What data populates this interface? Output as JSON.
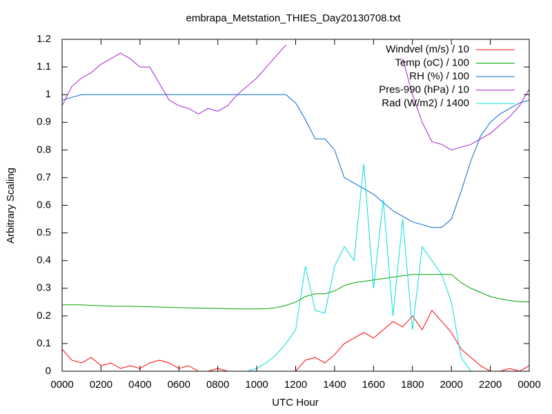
{
  "chart_data": {
    "type": "line",
    "title": "embrapa_Metstation_THIES_Day20130708.txt",
    "xlabel": "UTC Hour",
    "ylabel": "Arbitrary Scaling",
    "xlim": [
      0,
      24
    ],
    "ylim": [
      0,
      1.2
    ],
    "xticks": [
      {
        "value": 0,
        "label": "0000"
      },
      {
        "value": 2,
        "label": "0200"
      },
      {
        "value": 4,
        "label": "0400"
      },
      {
        "value": 6,
        "label": "0600"
      },
      {
        "value": 8,
        "label": "0800"
      },
      {
        "value": 10,
        "label": "1000"
      },
      {
        "value": 12,
        "label": "1200"
      },
      {
        "value": 14,
        "label": "1400"
      },
      {
        "value": 16,
        "label": "1600"
      },
      {
        "value": 18,
        "label": "1800"
      },
      {
        "value": 20,
        "label": "2000"
      },
      {
        "value": 22,
        "label": "2200"
      },
      {
        "value": 24,
        "label": "0000"
      }
    ],
    "yticks": [
      0,
      0.1,
      0.2,
      0.3,
      0.4,
      0.5,
      0.6,
      0.7,
      0.8,
      0.9,
      1,
      1.1,
      1.2
    ],
    "grid": false,
    "legend": "top-right",
    "x": [
      0,
      0.5,
      1,
      1.5,
      2,
      2.5,
      3,
      3.5,
      4,
      4.5,
      5,
      5.5,
      6,
      6.5,
      7,
      7.5,
      8,
      8.5,
      9,
      9.5,
      10,
      10.5,
      11,
      11.5,
      12,
      12.5,
      13,
      13.5,
      14,
      14.5,
      15,
      15.5,
      16,
      16.5,
      17,
      17.5,
      18,
      18.5,
      19,
      19.5,
      20,
      20.5,
      21,
      21.5,
      22,
      22.5,
      23,
      23.5,
      24
    ],
    "series": [
      {
        "name": "Windvel (m/s) / 10",
        "color": "#ff0000",
        "values": [
          0.08,
          0.04,
          0.03,
          0.05,
          0.02,
          0.03,
          0.01,
          0.02,
          0.01,
          0.03,
          0.04,
          0.03,
          0.01,
          0.02,
          0,
          0,
          0.01,
          0,
          0,
          0,
          0,
          0,
          0,
          0,
          0,
          0.04,
          0.05,
          0.03,
          0.06,
          0.1,
          0.12,
          0.14,
          0.12,
          0.15,
          0.18,
          0.16,
          0.2,
          0.15,
          0.22,
          0.18,
          0.14,
          0.08,
          0.05,
          0.02,
          0,
          0,
          0.01,
          0,
          0.02
        ]
      },
      {
        "name": "Temp (oC) / 100",
        "color": "#00a000",
        "values": [
          0.24,
          0.24,
          0.24,
          0.238,
          0.237,
          0.235,
          0.235,
          0.235,
          0.234,
          0.233,
          0.232,
          0.231,
          0.23,
          0.229,
          0.228,
          0.228,
          0.227,
          0.226,
          0.225,
          0.225,
          0.225,
          0.226,
          0.23,
          0.238,
          0.25,
          0.27,
          0.28,
          0.28,
          0.29,
          0.31,
          0.32,
          0.325,
          0.33,
          0.335,
          0.34,
          0.345,
          0.35,
          0.35,
          0.35,
          0.35,
          0.35,
          0.32,
          0.3,
          0.285,
          0.27,
          0.262,
          0.255,
          0.252,
          0.25
        ]
      },
      {
        "name": "RH (%) / 100",
        "color": "#0066cc",
        "values": [
          0.98,
          0.99,
          1,
          1,
          1,
          1,
          1,
          1,
          1,
          1,
          1,
          1,
          1,
          1,
          1,
          1,
          1,
          1,
          1,
          1,
          1,
          1,
          1,
          1,
          0.97,
          0.91,
          0.84,
          0.84,
          0.8,
          0.7,
          0.68,
          0.66,
          0.64,
          0.61,
          0.58,
          0.56,
          0.54,
          0.53,
          0.52,
          0.52,
          0.55,
          0.65,
          0.76,
          0.85,
          0.9,
          0.93,
          0.95,
          0.97,
          0.98
        ]
      },
      {
        "name": "Pres-990 (hPa) / 10",
        "color": "#a020d0",
        "values": [
          0.96,
          1.03,
          1.06,
          1.08,
          1.11,
          1.13,
          1.15,
          1.13,
          1.1,
          1.1,
          1.04,
          0.98,
          0.96,
          0.95,
          0.93,
          0.95,
          0.94,
          0.96,
          1,
          1.03,
          1.06,
          1.1,
          1.14,
          1.18,
          null,
          null,
          null,
          null,
          null,
          null,
          null,
          null,
          null,
          null,
          null,
          1.13,
          1,
          0.9,
          0.83,
          0.82,
          0.8,
          0.81,
          0.82,
          0.84,
          0.86,
          0.89,
          0.92,
          0.96,
          1.02
        ]
      },
      {
        "name": "Rad (W/m2) / 1400",
        "color": "#00dddd",
        "values": [
          0,
          0,
          0,
          0,
          0,
          0,
          0,
          0,
          0,
          0,
          0,
          0,
          0,
          0,
          0,
          0,
          0,
          0,
          0,
          0,
          0.01,
          0.03,
          0.06,
          0.1,
          0.15,
          0.38,
          0.22,
          0.21,
          0.38,
          0.45,
          0.4,
          0.75,
          0.3,
          0.62,
          0.2,
          0.55,
          0.15,
          0.45,
          0.4,
          0.35,
          0.25,
          0.05,
          0,
          0,
          0,
          0,
          0,
          0,
          0
        ]
      }
    ]
  }
}
